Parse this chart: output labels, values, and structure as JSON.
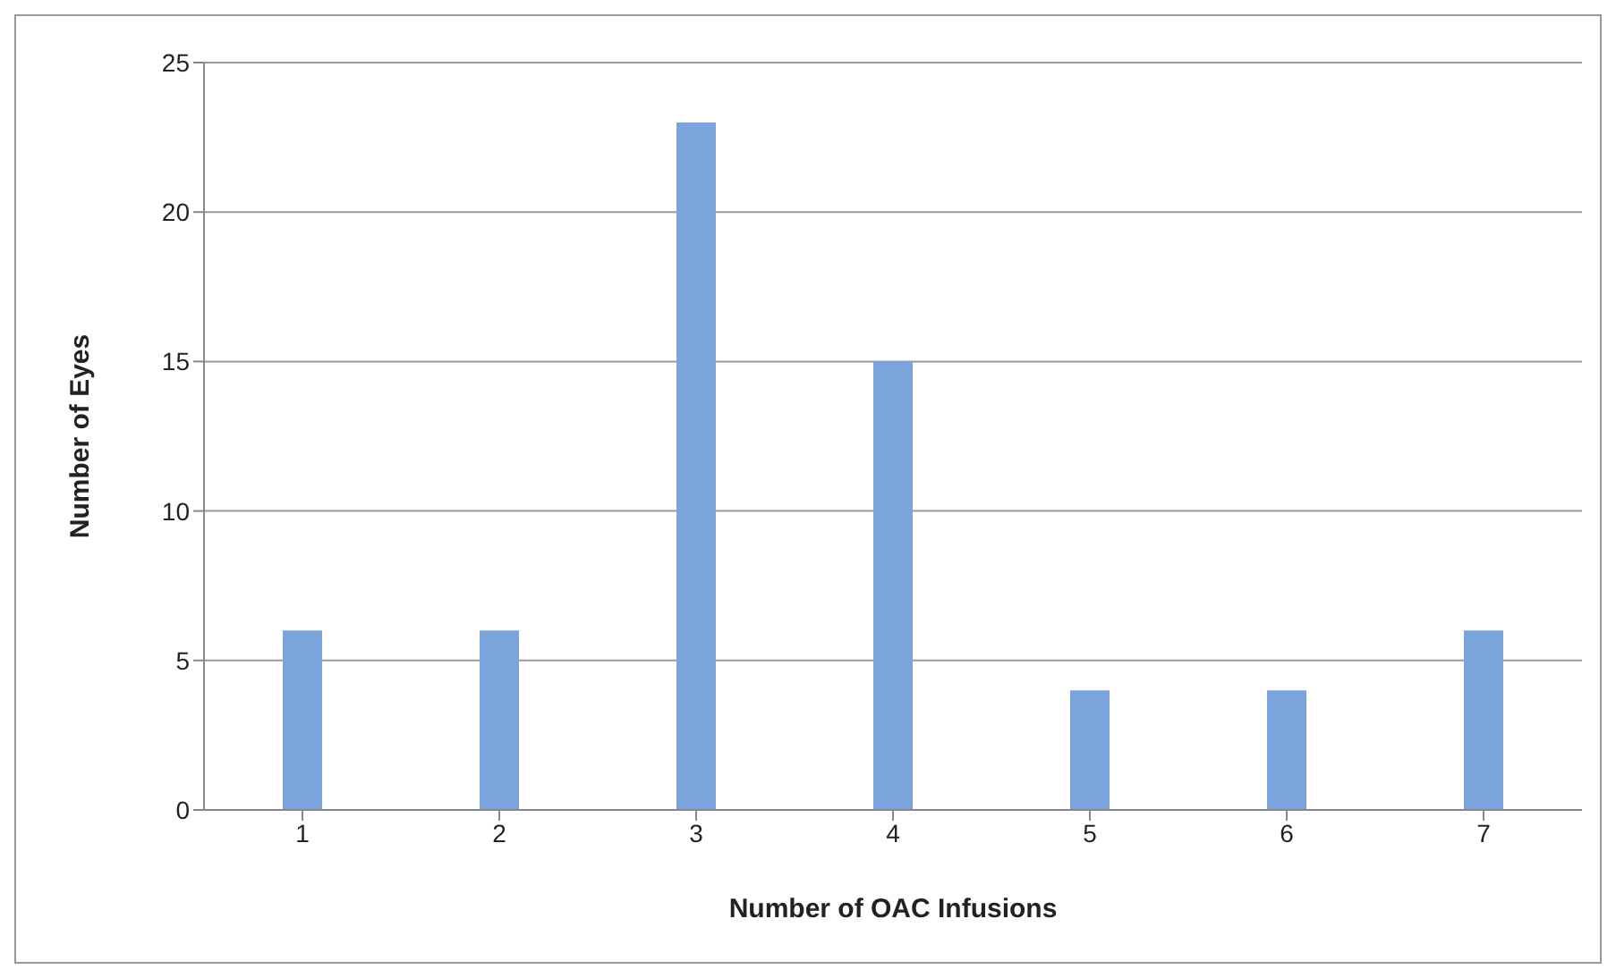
{
  "chart_data": {
    "type": "bar",
    "xlabel": "Number of OAC Infusions",
    "ylabel": "Number of Eyes",
    "categories": [
      "1",
      "2",
      "3",
      "4",
      "5",
      "6",
      "7"
    ],
    "values": [
      6,
      6,
      23,
      15,
      4,
      4,
      6
    ],
    "color": "#7ba3dc",
    "ylim": [
      0,
      25
    ],
    "yticks": [
      0,
      5,
      10,
      15,
      20,
      25
    ],
    "grid": "y"
  }
}
